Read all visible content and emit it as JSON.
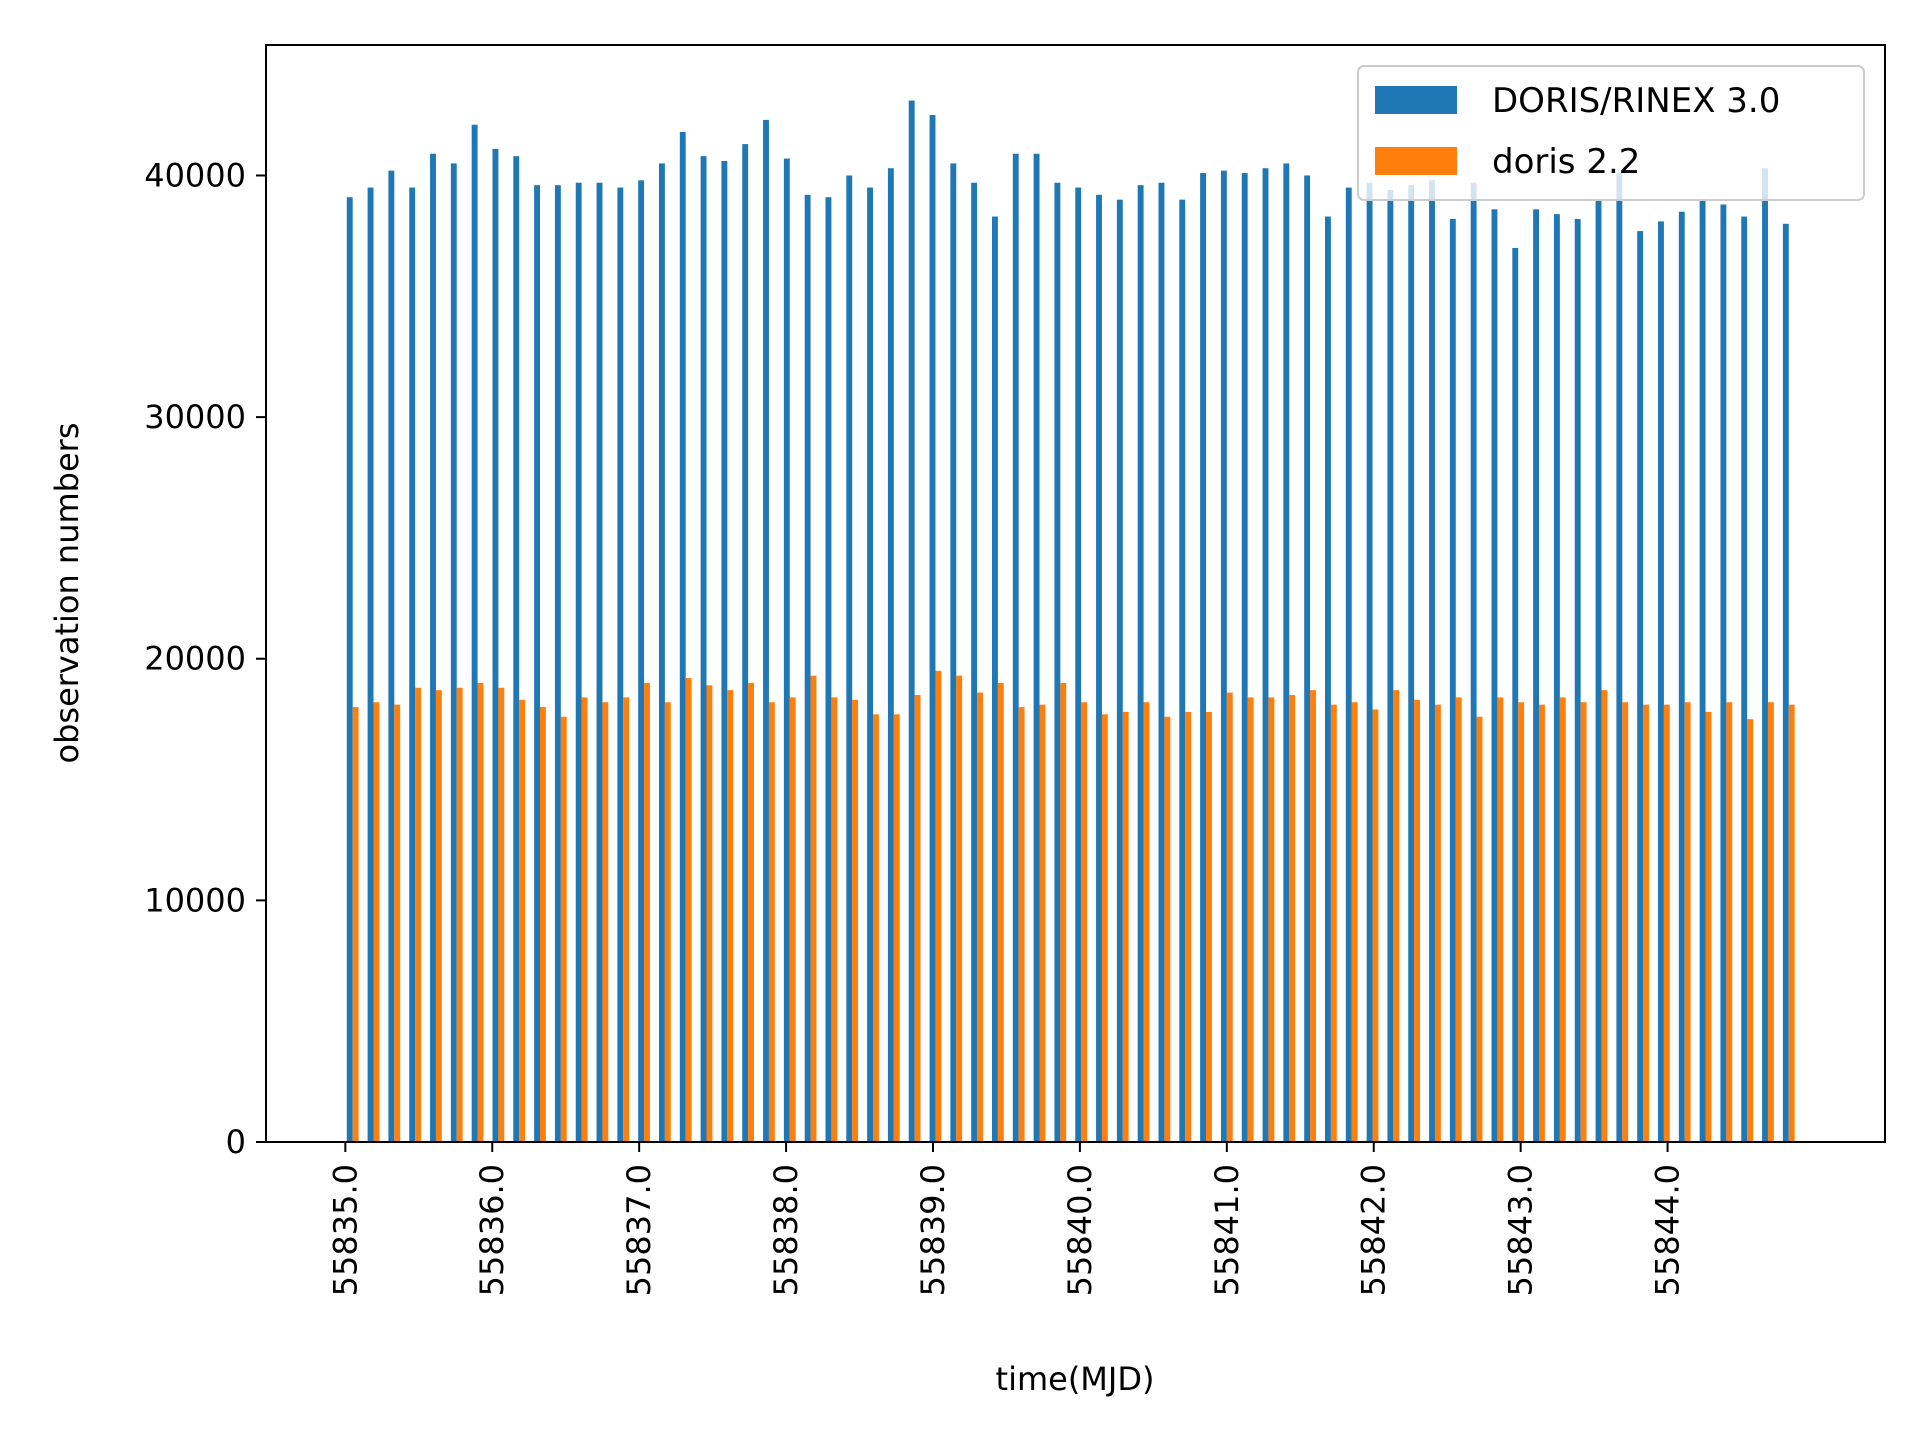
{
  "chart_data": {
    "type": "bar",
    "title": "",
    "xlabel": "time(MJD)",
    "ylabel": "observation numbers",
    "xlim": [
      55834.46,
      55845.48
    ],
    "ylim": [
      0,
      45400
    ],
    "xticks": [
      "55835.0",
      "55836.0",
      "55837.0",
      "55838.0",
      "55839.0",
      "55840.0",
      "55841.0",
      "55842.0",
      "55843.0",
      "55844.0"
    ],
    "xtick_values": [
      55835.0,
      55836.0,
      55837.0,
      55838.0,
      55839.0,
      55840.0,
      55841.0,
      55842.0,
      55843.0,
      55844.0
    ],
    "yticks": [
      "0",
      "10000",
      "20000",
      "30000",
      "40000"
    ],
    "ytick_values": [
      0,
      10000,
      20000,
      30000,
      40000
    ],
    "grid": false,
    "legend_position": "top-right",
    "bin_width_days": 0.04,
    "x": [
      55835.05,
      55835.1917,
      55835.3333,
      55835.475,
      55835.6167,
      55835.7583,
      55835.9,
      55836.0417,
      55836.1833,
      55836.325,
      55836.4667,
      55836.6083,
      55836.75,
      55836.8917,
      55837.0333,
      55837.175,
      55837.3167,
      55837.4583,
      55837.6,
      55837.7417,
      55837.8833,
      55838.025,
      55838.1667,
      55838.3083,
      55838.45,
      55838.5917,
      55838.7333,
      55838.875,
      55839.0167,
      55839.1583,
      55839.3,
      55839.4417,
      55839.5833,
      55839.725,
      55839.8667,
      55840.0083,
      55840.15,
      55840.2917,
      55840.4333,
      55840.575,
      55840.7167,
      55840.8583,
      55841.0,
      55841.1417,
      55841.2833,
      55841.425,
      55841.5667,
      55841.7083,
      55841.85,
      55841.9917,
      55842.1333,
      55842.275,
      55842.4167,
      55842.5583,
      55842.7,
      55842.8417,
      55842.9833,
      55843.125,
      55843.2667,
      55843.4083,
      55843.55,
      55843.6917,
      55843.8333,
      55843.975,
      55844.1167,
      55844.2583,
      55844.4,
      55844.5417,
      55844.6833,
      55844.825
    ],
    "series": [
      {
        "name": "DORIS/RINEX 3.0",
        "color": "#1f77b4",
        "values": [
          39100,
          39500,
          40200,
          39500,
          40900,
          40500,
          42100,
          41100,
          40800,
          39600,
          39600,
          39700,
          39700,
          39500,
          39800,
          40500,
          41800,
          40800,
          40600,
          41300,
          42300,
          40700,
          39200,
          39100,
          40000,
          39500,
          40300,
          43100,
          42500,
          40500,
          39700,
          38300,
          40900,
          40900,
          39700,
          39500,
          39200,
          39000,
          39600,
          39700,
          39000,
          40100,
          40200,
          40100,
          40300,
          40500,
          40000,
          38300,
          39500,
          39700,
          39400,
          39600,
          39800,
          38200,
          39700,
          38600,
          37000,
          38600,
          38400,
          38200,
          39000,
          40100,
          37700,
          38100,
          38500,
          39000,
          38800,
          38300,
          40300,
          38000
        ]
      },
      {
        "name": "doris 2.2",
        "color": "#ff7f0e",
        "values": [
          18000,
          18200,
          18100,
          18800,
          18700,
          18800,
          19000,
          18800,
          18300,
          18000,
          17600,
          18400,
          18200,
          18400,
          19000,
          18200,
          19200,
          18900,
          18700,
          19000,
          18200,
          18400,
          19300,
          18400,
          18300,
          17700,
          17700,
          18500,
          19500,
          19300,
          18600,
          19000,
          18000,
          18100,
          19000,
          18200,
          17700,
          17800,
          18200,
          17600,
          17800,
          17800,
          18600,
          18400,
          18400,
          18500,
          18700,
          18100,
          18200,
          17900,
          18700,
          18300,
          18100,
          18400,
          17600,
          18400,
          18200,
          18100,
          18400,
          18200,
          18700,
          18200,
          18100,
          18100,
          18200,
          17800,
          18200,
          17500,
          18200,
          18100
        ]
      }
    ]
  }
}
